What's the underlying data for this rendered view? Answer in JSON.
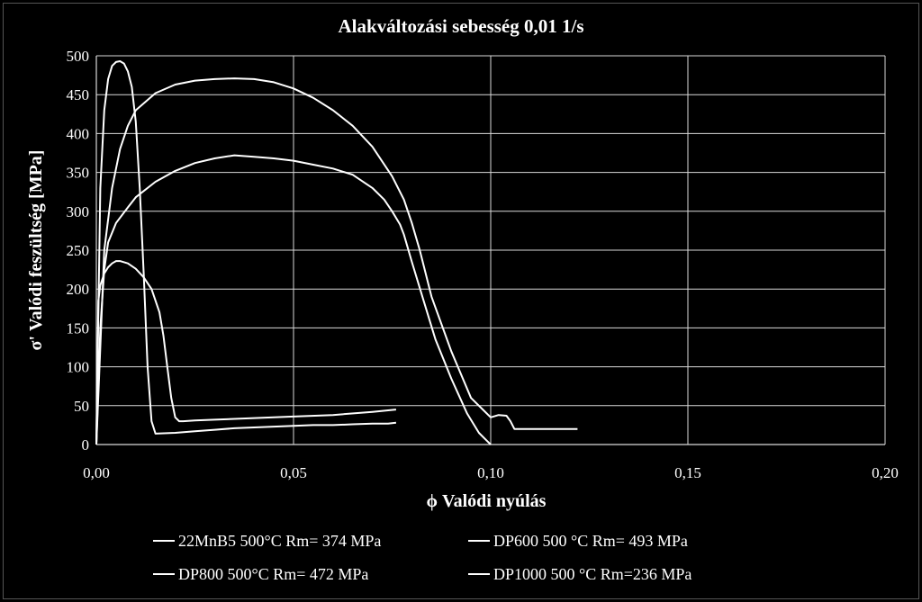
{
  "chart_data": {
    "type": "line",
    "title": "Alakváltozási sebesség 0,01 1/s",
    "xlabel": "ϕ Valódi nyúlás",
    "ylabel": "σ' Valódi feszültség [MPa]",
    "xlim": [
      0,
      0.2
    ],
    "ylim": [
      0,
      500
    ],
    "x_ticks": [
      "0,00",
      "0,05",
      "0,10",
      "0,15",
      "0,20"
    ],
    "x_tick_values": [
      0,
      0.05,
      0.1,
      0.15,
      0.2
    ],
    "y_ticks": [
      "0",
      "50",
      "100",
      "150",
      "200",
      "250",
      "300",
      "350",
      "400",
      "450",
      "500"
    ],
    "y_tick_values": [
      0,
      50,
      100,
      150,
      200,
      250,
      300,
      350,
      400,
      450,
      500
    ],
    "grid": true,
    "legend_position": "bottom",
    "line_color": "#ffffff",
    "series": [
      {
        "name": "22MnB5 500°C Rm= 374 MPa",
        "x": [
          0,
          0.001,
          0.002,
          0.003,
          0.005,
          0.008,
          0.01,
          0.015,
          0.02,
          0.025,
          0.03,
          0.035,
          0.04,
          0.045,
          0.05,
          0.055,
          0.06,
          0.065,
          0.07,
          0.073,
          0.075,
          0.077,
          0.078,
          0.08,
          0.083,
          0.086,
          0.09,
          0.094,
          0.097,
          0.099,
          0.1
        ],
        "y": [
          0,
          150,
          225,
          260,
          285,
          305,
          318,
          338,
          352,
          362,
          368,
          372,
          370,
          368,
          365,
          360,
          355,
          347,
          330,
          315,
          300,
          283,
          270,
          235,
          185,
          135,
          85,
          40,
          15,
          5,
          0
        ]
      },
      {
        "name": "DP600 500 °C Rm= 493 MPa",
        "x": [
          0,
          0.001,
          0.002,
          0.003,
          0.004,
          0.005,
          0.006,
          0.007,
          0.008,
          0.009,
          0.01,
          0.011,
          0.012,
          0.013,
          0.014,
          0.015,
          0.02,
          0.025,
          0.03,
          0.035,
          0.04,
          0.045,
          0.05,
          0.055,
          0.06,
          0.065,
          0.07,
          0.074,
          0.076
        ],
        "y": [
          0,
          330,
          430,
          470,
          487,
          492,
          493,
          490,
          480,
          460,
          415,
          330,
          220,
          100,
          30,
          14,
          15,
          17,
          19,
          21,
          22,
          23,
          24,
          25,
          25,
          26,
          27,
          27,
          28
        ]
      },
      {
        "name": "DP800 500°C Rm= 472 MPa",
        "x": [
          0,
          0.002,
          0.004,
          0.006,
          0.008,
          0.01,
          0.015,
          0.02,
          0.025,
          0.03,
          0.035,
          0.04,
          0.045,
          0.05,
          0.055,
          0.06,
          0.065,
          0.07,
          0.075,
          0.078,
          0.08,
          0.082,
          0.085,
          0.09,
          0.095,
          0.098,
          0.1,
          0.102,
          0.104,
          0.105,
          0.106,
          0.11,
          0.115,
          0.12,
          0.122
        ],
        "y": [
          0,
          250,
          330,
          380,
          410,
          430,
          452,
          463,
          468,
          470,
          471,
          470,
          466,
          458,
          446,
          430,
          410,
          383,
          345,
          315,
          285,
          250,
          190,
          120,
          60,
          45,
          35,
          38,
          37,
          30,
          20,
          20,
          20,
          20,
          20
        ]
      },
      {
        "name": "DP1000 500 °C Rm=236 MPa",
        "x": [
          0,
          0.0005,
          0.001,
          0.002,
          0.003,
          0.004,
          0.005,
          0.006,
          0.008,
          0.01,
          0.012,
          0.014,
          0.016,
          0.017,
          0.018,
          0.019,
          0.02,
          0.021,
          0.022,
          0.025,
          0.03,
          0.04,
          0.05,
          0.06,
          0.07,
          0.076
        ],
        "y": [
          0,
          185,
          205,
          220,
          228,
          233,
          236,
          236,
          233,
          226,
          215,
          200,
          170,
          140,
          100,
          60,
          35,
          30,
          30,
          31,
          32,
          34,
          36,
          38,
          42,
          45
        ]
      }
    ]
  }
}
